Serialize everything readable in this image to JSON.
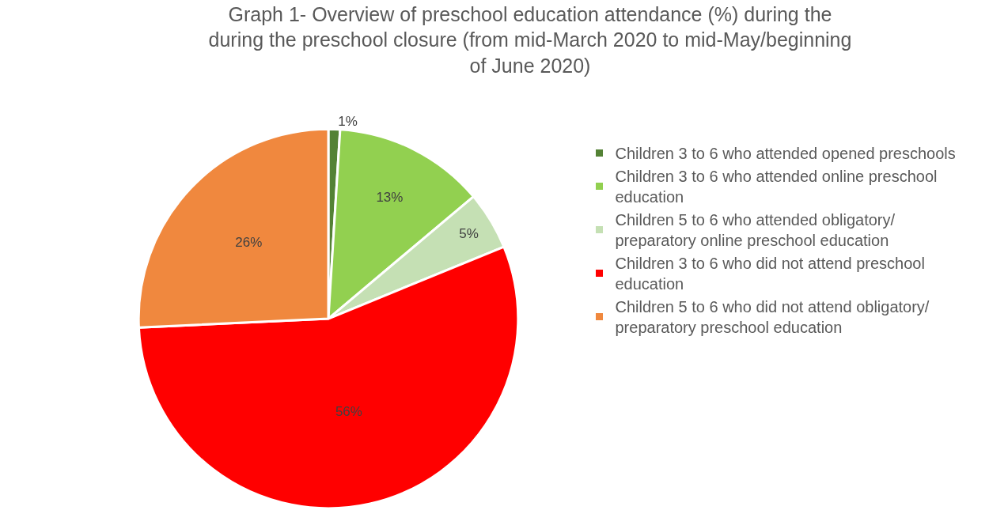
{
  "chart_data": {
    "type": "pie",
    "title": "Graph 1- Overview of preschool education attendance (%) during the during the preschool closure (from mid-March 2020 to mid-May/beginning of June 2020)",
    "categories": [
      "Children 3 to 6 who attended opened preschools",
      "Children 3 to 6 who attended online preschool education",
      "Children 5 to 6 who attended obligatory/ preparatory online preschool education",
      "Children 3 to 6 who did not attend preschool education",
      "Children 5 to 6 who did not attend obligatory/ preparatory preschool education"
    ],
    "values": [
      1,
      13,
      5,
      56,
      26
    ],
    "value_labels": [
      "1%",
      "13%",
      "5%",
      "56%",
      "26%"
    ],
    "colors": [
      "#548235",
      "#92d050",
      "#c5e0b4",
      "#ff0000",
      "#f0883e"
    ],
    "legend": "right"
  }
}
